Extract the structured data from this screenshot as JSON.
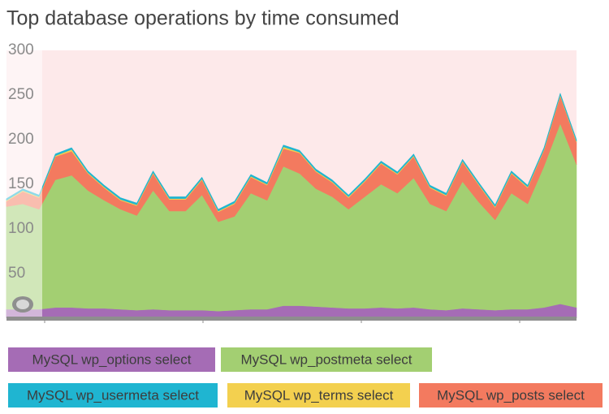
{
  "chart_data": {
    "type": "area",
    "title": "Top database operations by time consumed",
    "stacked": true,
    "ylim": [
      0,
      300
    ],
    "yticks": [
      50,
      100,
      150,
      200,
      250,
      300
    ],
    "series": [
      {
        "name": "MySQL wp_options select",
        "color": "#a56cb5",
        "values": [
          10,
          10,
          10,
          12,
          12,
          11,
          11,
          10,
          9,
          10,
          9,
          9,
          9,
          8,
          9,
          10,
          10,
          14,
          14,
          13,
          12,
          11,
          11,
          12,
          11,
          12,
          10,
          9,
          11,
          10,
          9,
          10,
          10,
          12,
          16,
          12
        ]
      },
      {
        "name": "MySQL wp_postmeta select",
        "color": "#a3cf72",
        "values": [
          115,
          118,
          112,
          143,
          148,
          132,
          121,
          112,
          106,
          133,
          111,
          111,
          129,
          100,
          105,
          130,
          122,
          156,
          148,
          132,
          124,
          111,
          125,
          138,
          129,
          145,
          118,
          111,
          142,
          120,
          101,
          130,
          118,
          158,
          202,
          160
        ]
      },
      {
        "name": "MySQL wp_posts select",
        "color": "#f37a5f",
        "values": [
          6,
          14,
          13,
          26,
          27,
          19,
          14,
          10,
          11,
          19,
          13,
          13,
          17,
          11,
          14,
          18,
          17,
          20,
          23,
          19,
          16,
          13,
          17,
          23,
          21,
          24,
          18,
          17,
          22,
          19,
          14,
          22,
          18,
          18,
          31,
          25
        ]
      },
      {
        "name": "MySQL wp_terms select",
        "color": "#f3d04f",
        "values": [
          1,
          1,
          1,
          1,
          2,
          1,
          1,
          1,
          1,
          1,
          1,
          1,
          1,
          1,
          1,
          1,
          1,
          2,
          1,
          1,
          1,
          1,
          1,
          1,
          1,
          1,
          1,
          1,
          1,
          1,
          1,
          1,
          1,
          1,
          1,
          1
        ]
      },
      {
        "name": "MySQL wp_usermeta select",
        "color": "#1fb5d1",
        "values": [
          2,
          2,
          2,
          2,
          2,
          2,
          2,
          2,
          2,
          2,
          2,
          2,
          2,
          2,
          2,
          2,
          2,
          2,
          2,
          2,
          2,
          2,
          2,
          2,
          2,
          2,
          2,
          2,
          2,
          2,
          2,
          2,
          2,
          2,
          2,
          2
        ]
      }
    ]
  }
}
